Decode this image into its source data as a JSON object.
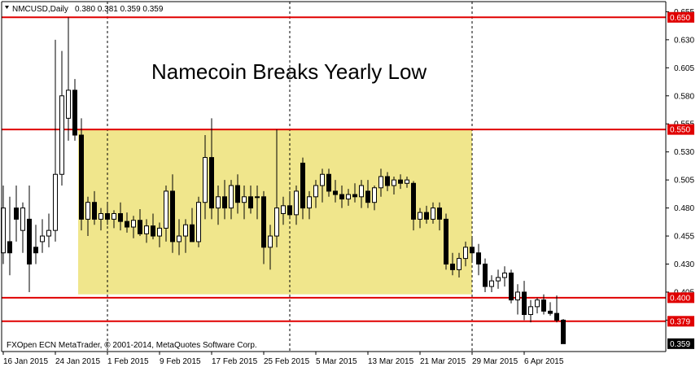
{
  "header": {
    "symbol": "NMCUSD,Daily",
    "ohlc": "0.380 0.381 0.359 0.359"
  },
  "annotation": "Namecoin Breaks Yearly Low",
  "footer": "FXOpen ECN MetaTrader, © 2001-2014, MetaQuotes Software Corp.",
  "colors": {
    "level_line": "#e00000",
    "zone_fill": "#f0e68c",
    "candle": "#000000",
    "badge_last": "#000000"
  },
  "chart_data": {
    "type": "candlestick",
    "title": "Namecoin Breaks Yearly Low",
    "ylim": [
      0.352,
      0.664
    ],
    "y_ticks": [
      "0.655",
      "0.630",
      "0.605",
      "0.580",
      "0.555",
      "0.530",
      "0.505",
      "0.480",
      "0.455",
      "0.430",
      "0.405",
      "0.380"
    ],
    "x_ticks": [
      "16 Jan 2015",
      "24 Jan 2015",
      "1 Feb 2015",
      "9 Feb 2015",
      "17 Feb 2015",
      "25 Feb 2015",
      "5 Mar 2015",
      "13 Mar 2015",
      "21 Mar 2015",
      "29 Mar 2015",
      "6 Apr 2015"
    ],
    "x_tick_index": [
      0,
      8,
      16,
      24,
      32,
      40,
      48,
      56,
      64,
      72,
      80
    ],
    "period_separators": [
      16,
      44,
      72
    ],
    "levels": [
      {
        "label": "0.650",
        "value": 0.65
      },
      {
        "label": "0.550",
        "value": 0.55
      },
      {
        "label": "0.400",
        "value": 0.4
      },
      {
        "label": "0.379",
        "value": 0.379
      }
    ],
    "last_price": {
      "label": "0.359",
      "value": 0.359
    },
    "zone": {
      "from_index": 12,
      "to_index": 72,
      "low": 0.403,
      "high": 0.55
    },
    "candles": [
      {
        "o": 0.44,
        "h": 0.5,
        "l": 0.43,
        "c": 0.48
      },
      {
        "o": 0.45,
        "h": 0.49,
        "l": 0.42,
        "c": 0.44
      },
      {
        "o": 0.48,
        "h": 0.5,
        "l": 0.45,
        "c": 0.47
      },
      {
        "o": 0.46,
        "h": 0.485,
        "l": 0.44,
        "c": 0.48
      },
      {
        "o": 0.47,
        "h": 0.5,
        "l": 0.405,
        "c": 0.43
      },
      {
        "o": 0.445,
        "h": 0.465,
        "l": 0.43,
        "c": 0.44
      },
      {
        "o": 0.45,
        "h": 0.47,
        "l": 0.44,
        "c": 0.455
      },
      {
        "o": 0.455,
        "h": 0.475,
        "l": 0.445,
        "c": 0.46
      },
      {
        "o": 0.46,
        "h": 0.63,
        "l": 0.45,
        "c": 0.51
      },
      {
        "o": 0.51,
        "h": 0.62,
        "l": 0.5,
        "c": 0.58
      },
      {
        "o": 0.56,
        "h": 0.65,
        "l": 0.54,
        "c": 0.585
      },
      {
        "o": 0.585,
        "h": 0.595,
        "l": 0.54,
        "c": 0.545
      },
      {
        "o": 0.545,
        "h": 0.56,
        "l": 0.46,
        "c": 0.47
      },
      {
        "o": 0.47,
        "h": 0.49,
        "l": 0.455,
        "c": 0.485
      },
      {
        "o": 0.485,
        "h": 0.495,
        "l": 0.465,
        "c": 0.47
      },
      {
        "o": 0.47,
        "h": 0.48,
        "l": 0.46,
        "c": 0.475
      },
      {
        "o": 0.475,
        "h": 0.485,
        "l": 0.465,
        "c": 0.47
      },
      {
        "o": 0.47,
        "h": 0.478,
        "l": 0.462,
        "c": 0.475
      },
      {
        "o": 0.475,
        "h": 0.485,
        "l": 0.46,
        "c": 0.468
      },
      {
        "o": 0.468,
        "h": 0.476,
        "l": 0.458,
        "c": 0.463
      },
      {
        "o": 0.463,
        "h": 0.473,
        "l": 0.453,
        "c": 0.469
      },
      {
        "o": 0.469,
        "h": 0.479,
        "l": 0.455,
        "c": 0.457
      },
      {
        "o": 0.457,
        "h": 0.47,
        "l": 0.449,
        "c": 0.464
      },
      {
        "o": 0.464,
        "h": 0.475,
        "l": 0.452,
        "c": 0.455
      },
      {
        "o": 0.455,
        "h": 0.467,
        "l": 0.445,
        "c": 0.462
      },
      {
        "o": 0.462,
        "h": 0.5,
        "l": 0.45,
        "c": 0.495
      },
      {
        "o": 0.495,
        "h": 0.51,
        "l": 0.44,
        "c": 0.45
      },
      {
        "o": 0.45,
        "h": 0.47,
        "l": 0.438,
        "c": 0.455
      },
      {
        "o": 0.455,
        "h": 0.47,
        "l": 0.44,
        "c": 0.465
      },
      {
        "o": 0.465,
        "h": 0.48,
        "l": 0.45,
        "c": 0.45
      },
      {
        "o": 0.45,
        "h": 0.49,
        "l": 0.445,
        "c": 0.485
      },
      {
        "o": 0.485,
        "h": 0.545,
        "l": 0.47,
        "c": 0.525
      },
      {
        "o": 0.525,
        "h": 0.56,
        "l": 0.47,
        "c": 0.48
      },
      {
        "o": 0.48,
        "h": 0.5,
        "l": 0.465,
        "c": 0.49
      },
      {
        "o": 0.49,
        "h": 0.505,
        "l": 0.47,
        "c": 0.48
      },
      {
        "o": 0.48,
        "h": 0.505,
        "l": 0.47,
        "c": 0.5
      },
      {
        "o": 0.5,
        "h": 0.51,
        "l": 0.475,
        "c": 0.485
      },
      {
        "o": 0.485,
        "h": 0.5,
        "l": 0.47,
        "c": 0.49
      },
      {
        "o": 0.49,
        "h": 0.5,
        "l": 0.475,
        "c": 0.48
      },
      {
        "o": 0.49,
        "h": 0.5,
        "l": 0.47,
        "c": 0.49
      },
      {
        "o": 0.49,
        "h": 0.495,
        "l": 0.43,
        "c": 0.445
      },
      {
        "o": 0.445,
        "h": 0.465,
        "l": 0.425,
        "c": 0.455
      },
      {
        "o": 0.455,
        "h": 0.55,
        "l": 0.445,
        "c": 0.48
      },
      {
        "o": 0.475,
        "h": 0.49,
        "l": 0.465,
        "c": 0.482
      },
      {
        "o": 0.482,
        "h": 0.495,
        "l": 0.47,
        "c": 0.474
      },
      {
        "o": 0.474,
        "h": 0.5,
        "l": 0.465,
        "c": 0.495
      },
      {
        "o": 0.52,
        "h": 0.525,
        "l": 0.47,
        "c": 0.48
      },
      {
        "o": 0.48,
        "h": 0.495,
        "l": 0.47,
        "c": 0.49
      },
      {
        "o": 0.49,
        "h": 0.505,
        "l": 0.48,
        "c": 0.5
      },
      {
        "o": 0.5,
        "h": 0.515,
        "l": 0.485,
        "c": 0.51
      },
      {
        "o": 0.51,
        "h": 0.515,
        "l": 0.49,
        "c": 0.495
      },
      {
        "o": 0.495,
        "h": 0.505,
        "l": 0.485,
        "c": 0.492
      },
      {
        "o": 0.492,
        "h": 0.5,
        "l": 0.48,
        "c": 0.488
      },
      {
        "o": 0.488,
        "h": 0.497,
        "l": 0.482,
        "c": 0.492
      },
      {
        "o": 0.492,
        "h": 0.502,
        "l": 0.485,
        "c": 0.49
      },
      {
        "o": 0.49,
        "h": 0.505,
        "l": 0.48,
        "c": 0.5
      },
      {
        "o": 0.495,
        "h": 0.505,
        "l": 0.48,
        "c": 0.485
      },
      {
        "o": 0.485,
        "h": 0.5,
        "l": 0.478,
        "c": 0.498
      },
      {
        "o": 0.498,
        "h": 0.515,
        "l": 0.49,
        "c": 0.508
      },
      {
        "o": 0.508,
        "h": 0.512,
        "l": 0.495,
        "c": 0.5
      },
      {
        "o": 0.5,
        "h": 0.508,
        "l": 0.492,
        "c": 0.505
      },
      {
        "o": 0.505,
        "h": 0.51,
        "l": 0.497,
        "c": 0.502
      },
      {
        "o": 0.502,
        "h": 0.508,
        "l": 0.498,
        "c": 0.505
      },
      {
        "o": 0.502,
        "h": 0.504,
        "l": 0.46,
        "c": 0.47
      },
      {
        "o": 0.47,
        "h": 0.48,
        "l": 0.462,
        "c": 0.476
      },
      {
        "o": 0.476,
        "h": 0.482,
        "l": 0.466,
        "c": 0.47
      },
      {
        "o": 0.47,
        "h": 0.485,
        "l": 0.466,
        "c": 0.48
      },
      {
        "o": 0.48,
        "h": 0.485,
        "l": 0.46,
        "c": 0.47
      },
      {
        "o": 0.47,
        "h": 0.475,
        "l": 0.425,
        "c": 0.43
      },
      {
        "o": 0.43,
        "h": 0.44,
        "l": 0.42,
        "c": 0.425
      },
      {
        "o": 0.425,
        "h": 0.44,
        "l": 0.418,
        "c": 0.435
      },
      {
        "o": 0.435,
        "h": 0.45,
        "l": 0.428,
        "c": 0.445
      },
      {
        "o": 0.445,
        "h": 0.455,
        "l": 0.432,
        "c": 0.44
      },
      {
        "o": 0.44,
        "h": 0.448,
        "l": 0.42,
        "c": 0.43
      },
      {
        "o": 0.43,
        "h": 0.435,
        "l": 0.405,
        "c": 0.41
      },
      {
        "o": 0.41,
        "h": 0.42,
        "l": 0.405,
        "c": 0.415
      },
      {
        "o": 0.415,
        "h": 0.425,
        "l": 0.408,
        "c": 0.418
      },
      {
        "o": 0.418,
        "h": 0.428,
        "l": 0.41,
        "c": 0.422
      },
      {
        "o": 0.422,
        "h": 0.425,
        "l": 0.395,
        "c": 0.398
      },
      {
        "o": 0.398,
        "h": 0.412,
        "l": 0.385,
        "c": 0.405
      },
      {
        "o": 0.405,
        "h": 0.415,
        "l": 0.38,
        "c": 0.385
      },
      {
        "o": 0.385,
        "h": 0.398,
        "l": 0.378,
        "c": 0.392
      },
      {
        "o": 0.392,
        "h": 0.4,
        "l": 0.386,
        "c": 0.398
      },
      {
        "o": 0.398,
        "h": 0.403,
        "l": 0.385,
        "c": 0.388
      },
      {
        "o": 0.388,
        "h": 0.396,
        "l": 0.384,
        "c": 0.386
      },
      {
        "o": 0.386,
        "h": 0.402,
        "l": 0.378,
        "c": 0.38
      },
      {
        "o": 0.38,
        "h": 0.381,
        "l": 0.359,
        "c": 0.359
      }
    ]
  }
}
